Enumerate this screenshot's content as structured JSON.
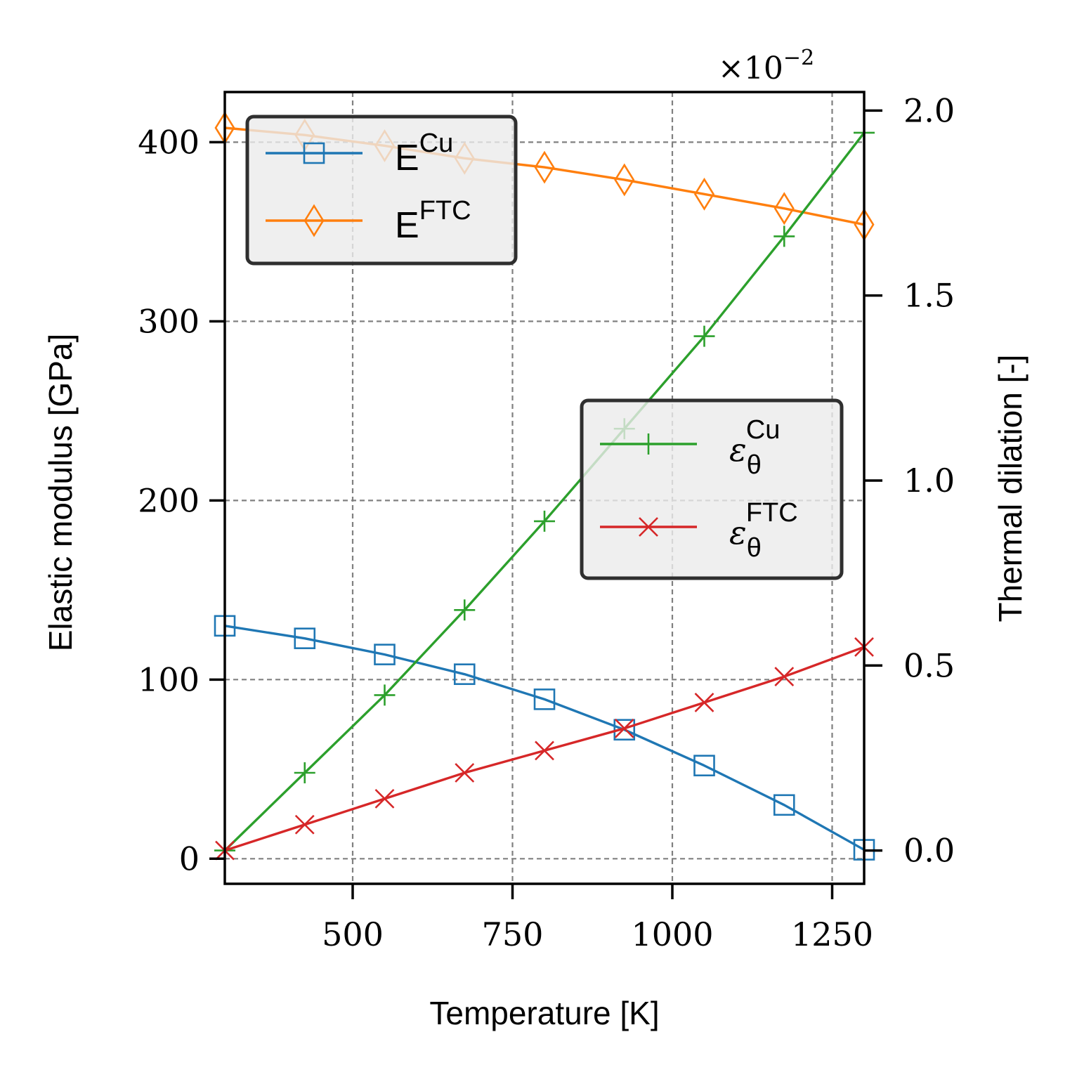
{
  "chart_data": {
    "type": "line",
    "xlabel": "Temperature [K]",
    "ylabel": "Elastic modulus [GPa]",
    "y2label": "Thermal dilation [-]",
    "y2_multiplier": "×10",
    "y2_multiplier_exp": "−2",
    "xlim": [
      300,
      1300
    ],
    "ylim": [
      -14,
      428
    ],
    "y2lim": [
      -0.0009,
      0.0205
    ],
    "xticks": [
      500,
      750,
      1000,
      1250
    ],
    "yticks": [
      0,
      100,
      200,
      300,
      400
    ],
    "y2ticks": [
      0.0,
      0.005,
      0.01,
      0.015,
      0.02
    ],
    "xtick_labels": [
      "500",
      "750",
      "1000",
      "1250"
    ],
    "ytick_labels": [
      "0",
      "100",
      "200",
      "300",
      "400"
    ],
    "y2tick_labels": [
      "0.0",
      "0.5",
      "1.0",
      "1.5",
      "2.0"
    ],
    "grid": true,
    "x": [
      300,
      425,
      550,
      675,
      800,
      925,
      1050,
      1175,
      1300
    ],
    "series": [
      {
        "name": "E",
        "sup": "Cu",
        "axis": "left",
        "marker": "square",
        "color": "#1f77b4",
        "values": [
          130,
          123,
          114,
          103,
          89,
          72,
          52,
          30,
          5
        ]
      },
      {
        "name": "E",
        "sup": "FTC",
        "axis": "left",
        "marker": "diamond",
        "color": "#ff7f0e",
        "values": [
          408,
          404,
          398,
          391,
          386,
          379,
          371,
          363,
          354
        ]
      },
      {
        "name": "ε",
        "sub": "θ",
        "sup": "Cu",
        "axis": "right",
        "marker": "plus",
        "color": "#2ca02c",
        "values": [
          0.0,
          0.0021,
          0.0042,
          0.0065,
          0.0089,
          0.0114,
          0.0139,
          0.0166,
          0.0194
        ]
      },
      {
        "name": "ε",
        "sub": "θ",
        "sup": "FTC",
        "axis": "right",
        "marker": "x",
        "color": "#d62728",
        "values": [
          0.0,
          0.0007,
          0.0014,
          0.0021,
          0.0027,
          0.0033,
          0.004,
          0.0047,
          0.0055
        ]
      }
    ],
    "legends": [
      {
        "placement": "upper-left",
        "series": [
          0,
          1
        ]
      },
      {
        "placement": "center-right",
        "series": [
          2,
          3
        ]
      }
    ],
    "colors": {
      "grid": "#808080",
      "legend_bg": "#ebebeb",
      "legend_border": "#2f2f2f",
      "axis": "#000000"
    }
  }
}
